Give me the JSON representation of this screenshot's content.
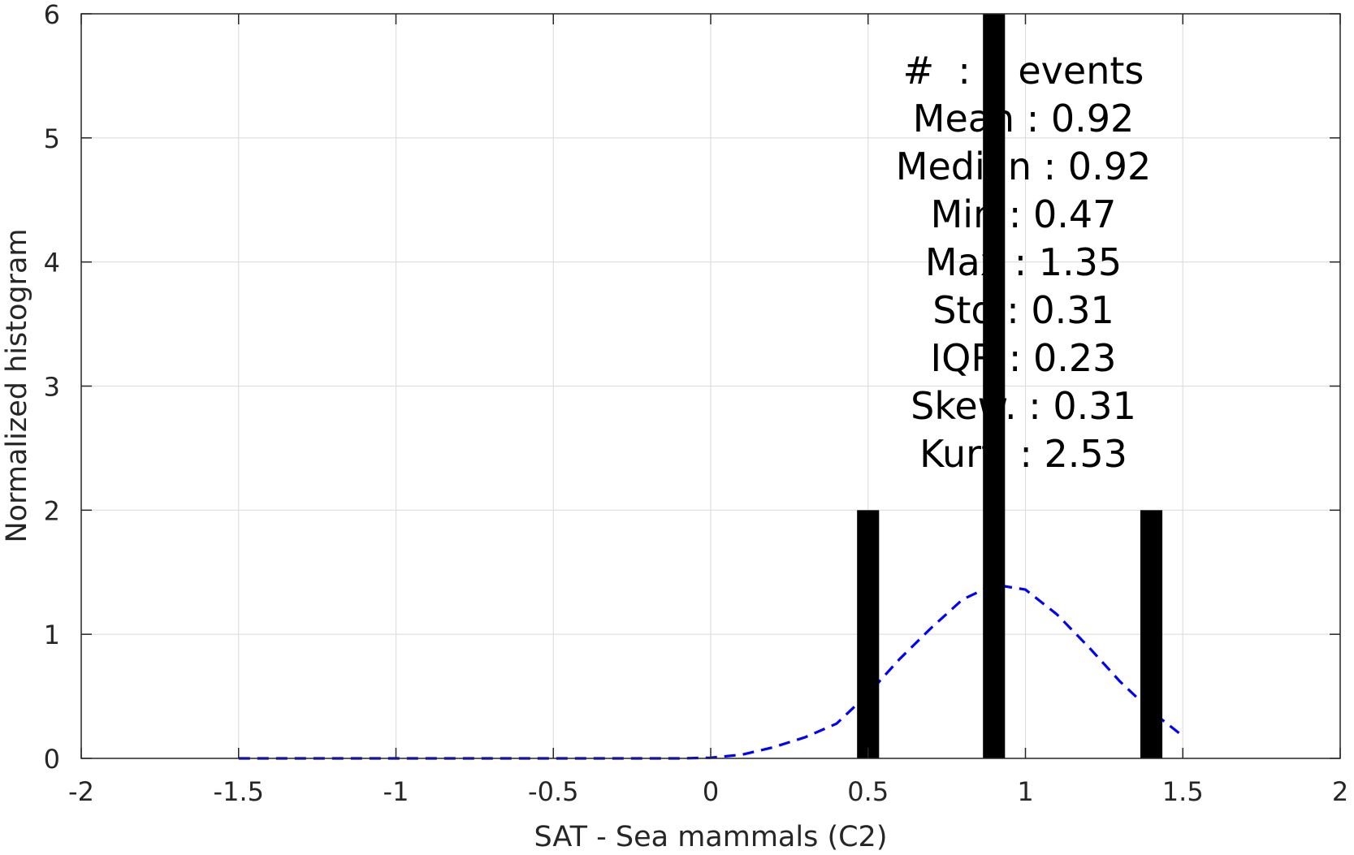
{
  "chart_data": {
    "type": "bar",
    "title": "",
    "xlabel": "SAT - Sea mammals (C2)",
    "ylabel": "Normalized histogram",
    "xlim": [
      -2,
      2
    ],
    "ylim": [
      0,
      6
    ],
    "xticks": [
      -2,
      -1.5,
      -1,
      -0.5,
      0,
      0.5,
      1,
      1.5,
      2
    ],
    "xtick_labels": [
      "-2",
      "-1.5",
      "-1",
      "-0.5",
      "0",
      "0.5",
      "1",
      "1.5",
      "2"
    ],
    "yticks": [
      0,
      1,
      2,
      3,
      4,
      5,
      6
    ],
    "ytick_labels": [
      "0",
      "1",
      "2",
      "3",
      "4",
      "5",
      "6"
    ],
    "grid": true,
    "bar_color": "#000000",
    "bar_width": 0.07,
    "bars": [
      {
        "x": 0.5,
        "value": 2
      },
      {
        "x": 0.9,
        "value": 6
      },
      {
        "x": 1.4,
        "value": 2
      }
    ],
    "fit_curve": {
      "style": "dashed",
      "color": "#0000ff",
      "x": [
        -1.5,
        -1.4,
        -1.3,
        -1.2,
        -1.1,
        -1.0,
        -0.9,
        -0.8,
        -0.7,
        -0.6,
        -0.5,
        -0.4,
        -0.3,
        -0.2,
        -0.1,
        0.0,
        0.1,
        0.2,
        0.3,
        0.4,
        0.5,
        0.6,
        0.7,
        0.8,
        0.9,
        1.0,
        1.1,
        1.2,
        1.3,
        1.4,
        1.5
      ],
      "y": [
        0,
        0,
        0,
        0,
        0,
        0,
        0,
        0,
        0,
        0,
        0,
        0,
        0,
        0,
        0,
        0.005,
        0.03,
        0.09,
        0.17,
        0.28,
        0.52,
        0.8,
        1.05,
        1.28,
        1.4,
        1.36,
        1.16,
        0.9,
        0.62,
        0.38,
        0.18
      ]
    },
    "stats_lines": [
      "#  :    events",
      "Mean : 0.92",
      "Median : 0.92",
      "Min : 0.47",
      "Max : 1.35",
      "Std : 0.31",
      "IQR : 0.23",
      "Skew. : 0.31",
      "Kurt. : 2.53"
    ]
  }
}
